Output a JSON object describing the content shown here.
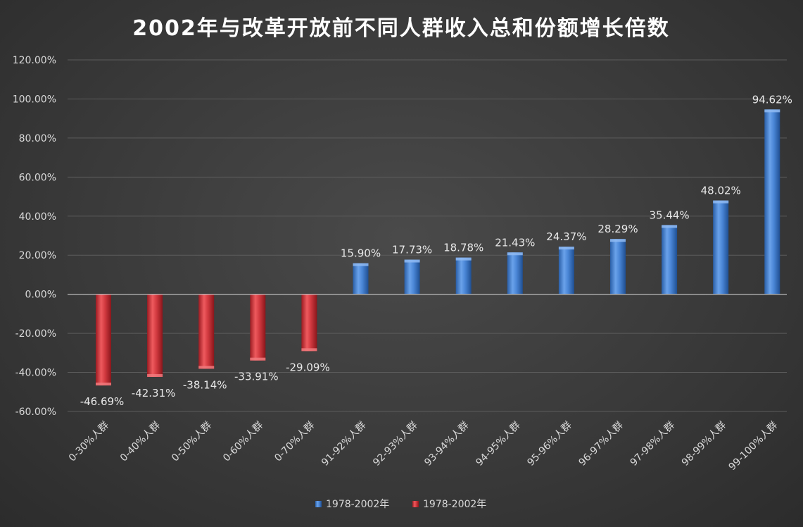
{
  "chart_data": {
    "type": "bar",
    "title": "2002年与改革开放前不同人群收入总和份额增长倍数",
    "xlabel": "",
    "ylabel": "",
    "ylim": [
      -60,
      120
    ],
    "yticks": [
      120,
      100,
      80,
      60,
      40,
      20,
      0,
      -20,
      -40,
      -60
    ],
    "ytick_labels": [
      "120.00%",
      "100.00%",
      "80.00%",
      "60.00%",
      "40.00%",
      "20.00%",
      "0.00%",
      "-20.00%",
      "-40.00%",
      "-60.00%"
    ],
    "grid": true,
    "legend_position": "bottom",
    "categories": [
      "0-30%人群",
      "0-40%人群",
      "0-50%人群",
      "0-60%人群",
      "0-70%人群",
      "91-92%人群",
      "92-93%人群",
      "93-94%人群",
      "94-95%人群",
      "95-96%人群",
      "96-97%人群",
      "97-98%人群",
      "98-99%人群",
      "99-100%人群"
    ],
    "values": [
      -46.69,
      -42.31,
      -38.14,
      -33.91,
      -29.09,
      15.9,
      17.73,
      18.78,
      21.43,
      24.37,
      28.29,
      35.44,
      48.02,
      94.62
    ],
    "value_labels": [
      "-46.69%",
      "-42.31%",
      "-38.14%",
      "-33.91%",
      "-29.09%",
      "15.90%",
      "17.73%",
      "18.78%",
      "21.43%",
      "24.37%",
      "28.29%",
      "35.44%",
      "48.02%",
      "94.62%"
    ],
    "series": [
      {
        "name": "1978-2002年",
        "color": "#3d7bd0",
        "indices": [
          5,
          6,
          7,
          8,
          9,
          10,
          11,
          12,
          13
        ]
      },
      {
        "name": "1978-2002年",
        "color": "#c8282e",
        "indices": [
          0,
          1,
          2,
          3,
          4
        ]
      }
    ]
  }
}
